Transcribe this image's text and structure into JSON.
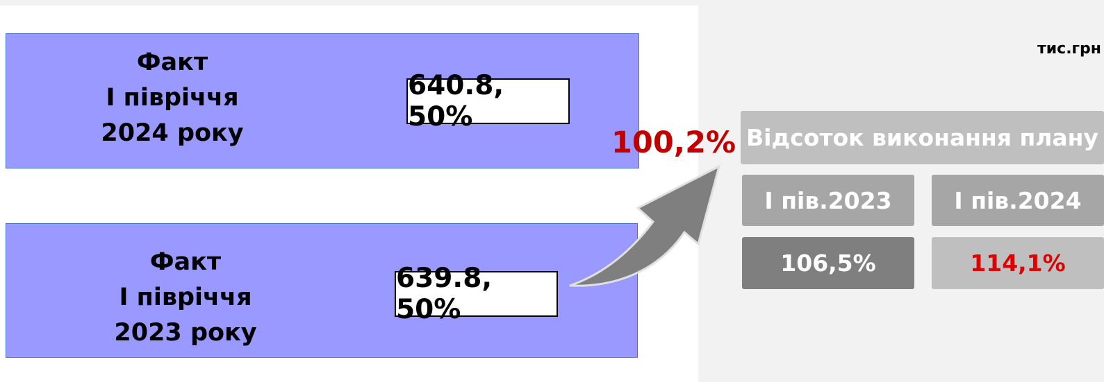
{
  "unit": "тис.грн",
  "facts": [
    {
      "label": [
        "Факт",
        "І півріччя",
        "2024 року"
      ],
      "value": "640.8, 50%"
    },
    {
      "label": [
        "Факт",
        "І півріччя",
        "2023 року"
      ],
      "value": "639.8, 50%"
    }
  ],
  "growth": "100,2%",
  "table": {
    "header": "Відсоток виконання плану",
    "columns": [
      "І пів.2023",
      "І пів.2024"
    ],
    "values": [
      "106,5%",
      "114,1%"
    ]
  }
}
